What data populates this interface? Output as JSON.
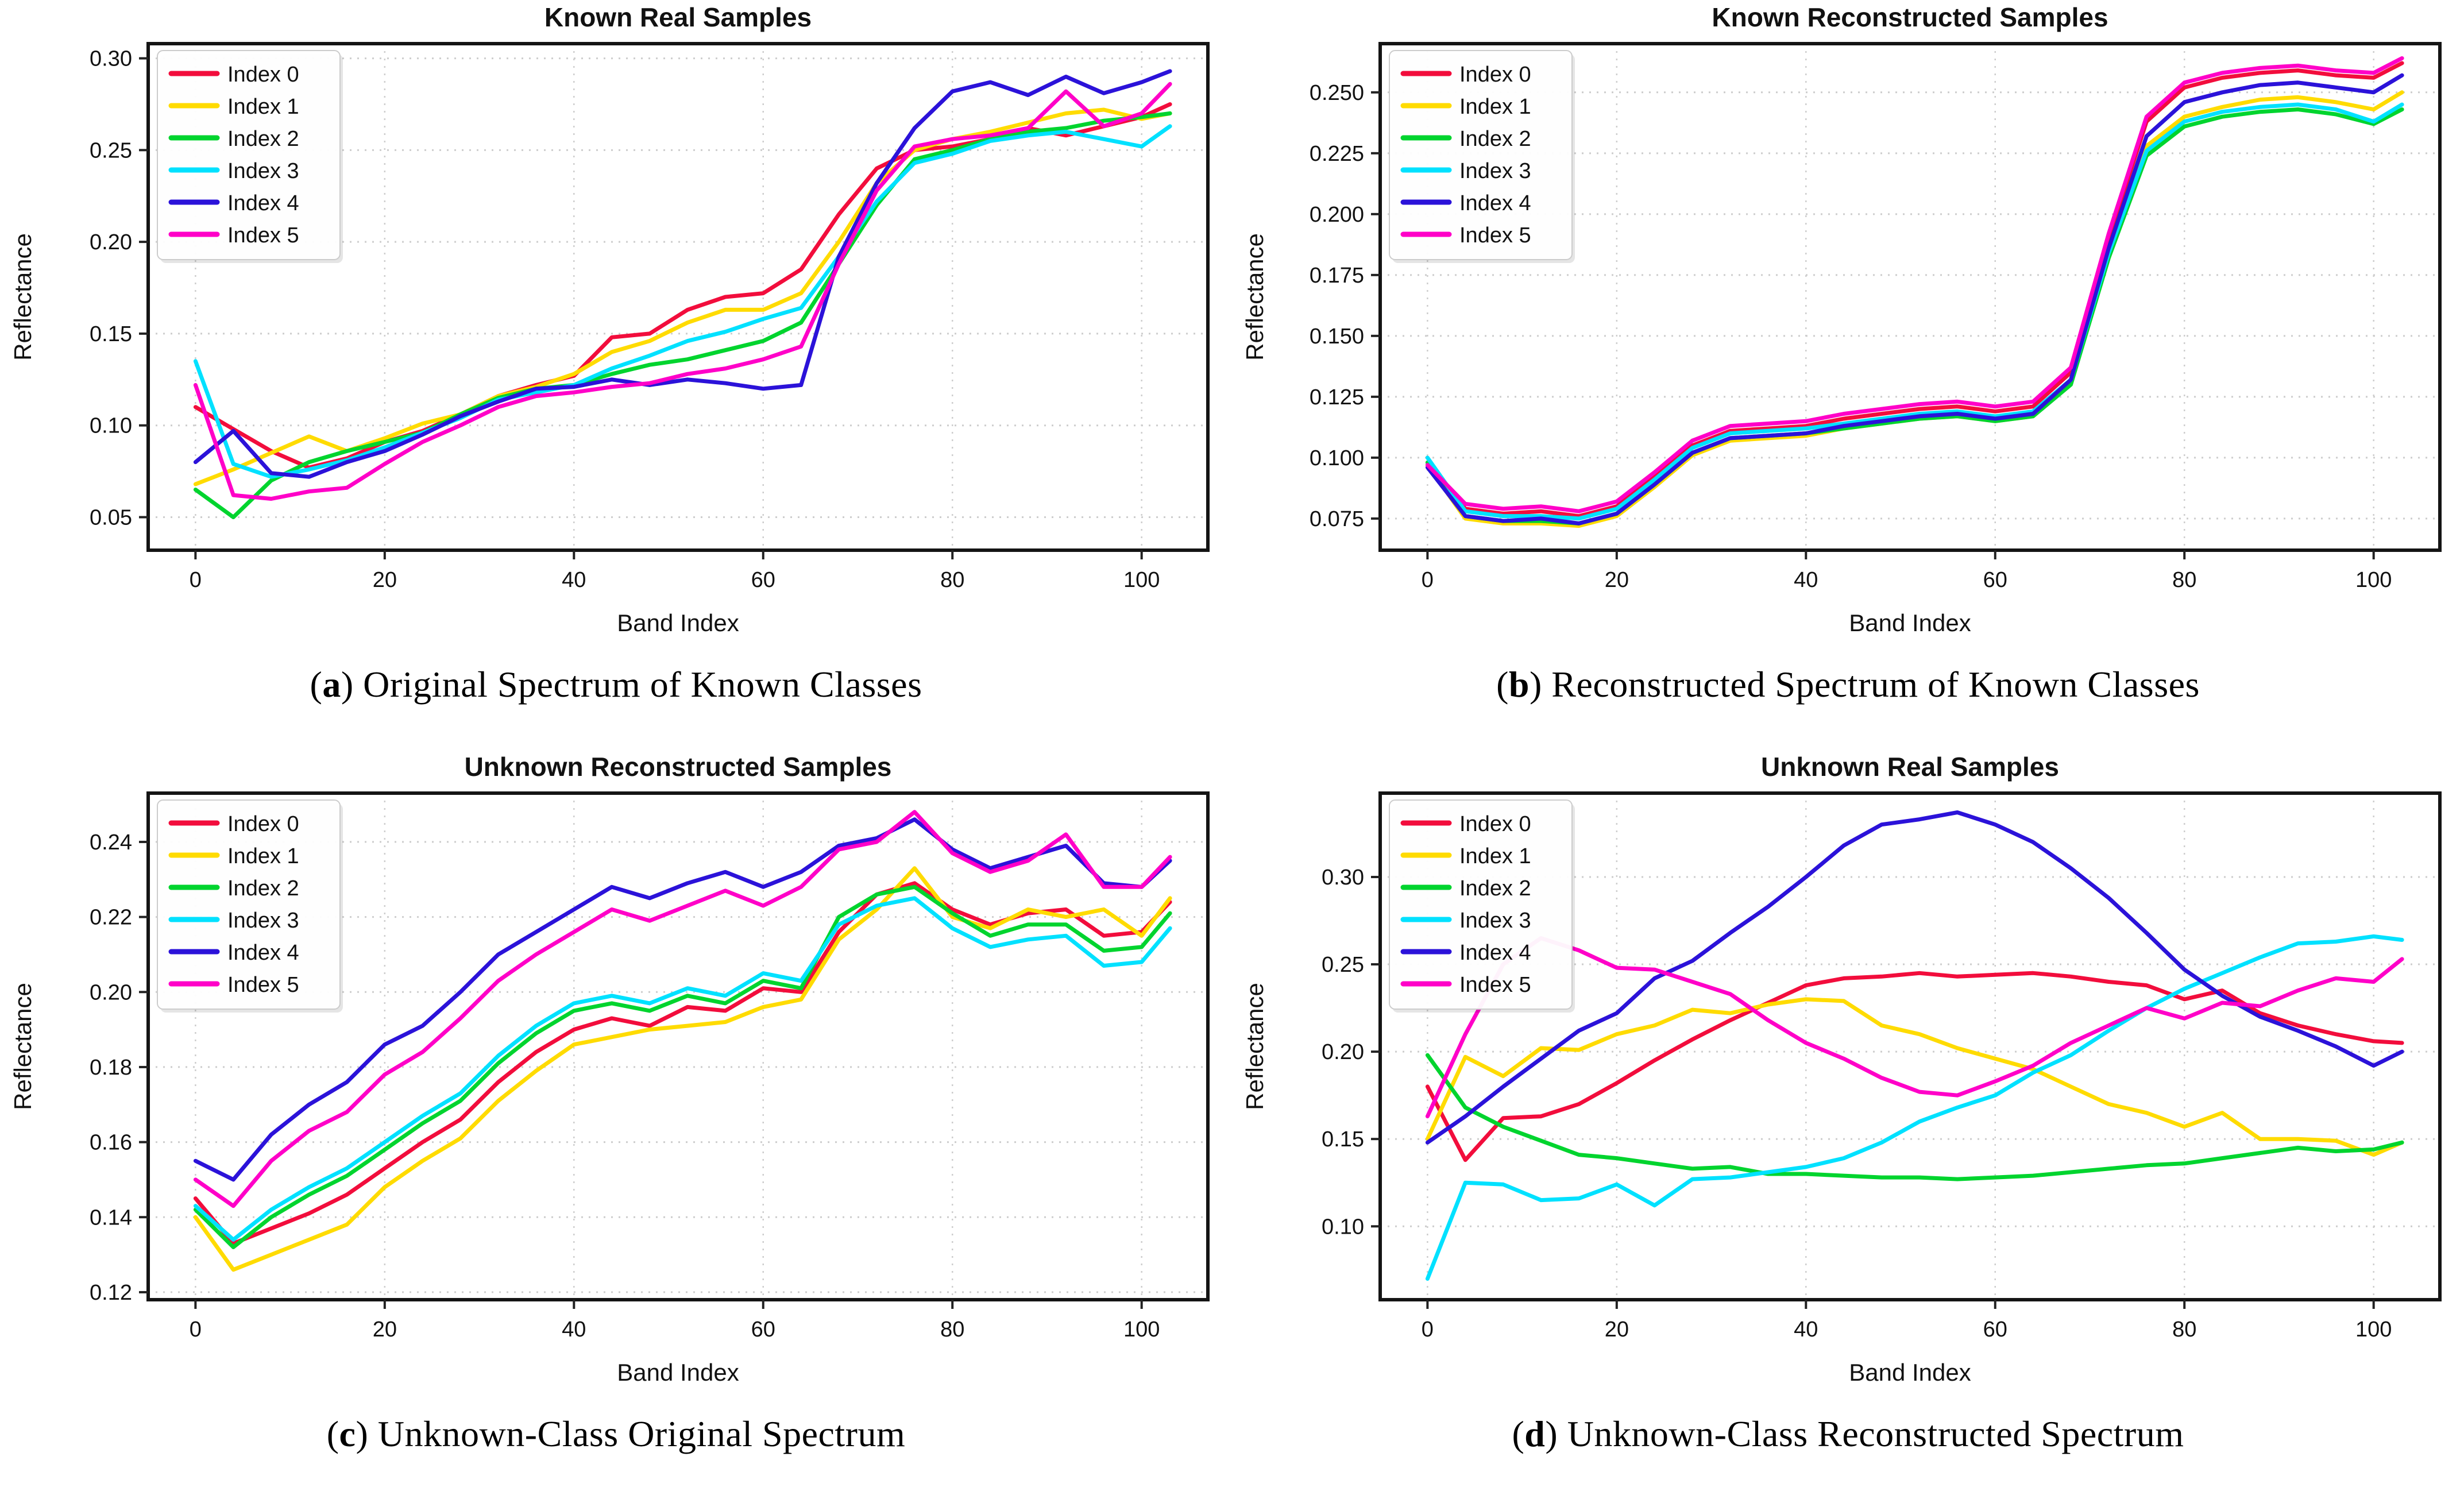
{
  "page": {
    "background": "#ffffff"
  },
  "caption_syntax": {
    "open": "(",
    "close": ") "
  },
  "figures": [
    {
      "id": "a",
      "caption_letter": "a",
      "caption_text": "Original Spectrum of Known Classes"
    },
    {
      "id": "b",
      "caption_letter": "b",
      "caption_text": "Reconstructed Spectrum of Known Classes"
    },
    {
      "id": "c",
      "caption_letter": "c",
      "caption_text": "Unknown-Class Original Spectrum"
    },
    {
      "id": "d",
      "caption_letter": "d",
      "caption_text": "Unknown-Class Reconstructed Spectrum"
    }
  ],
  "style": {
    "grid_color": "#cdcdcd",
    "spine_color": "#141414",
    "tick_color": "#222222",
    "text_color": "#111111",
    "legend_border": "#cccccc",
    "legend_bg": "#ffffff"
  },
  "chart_data": [
    {
      "id": "a",
      "type": "line",
      "title": "Known Real Samples",
      "xlabel": "Band Index",
      "ylabel": "Reflectance",
      "legend_position": "top-left",
      "grid": true,
      "xlim": [
        -5,
        107
      ],
      "ylim": [
        0.032,
        0.308
      ],
      "xticks": [
        0,
        20,
        40,
        60,
        80,
        100
      ],
      "ytick_values": [
        0.05,
        0.1,
        0.15,
        0.2,
        0.25,
        0.3
      ],
      "ytick_labels": [
        "0.05",
        "0.10",
        "0.15",
        "0.20",
        "0.25",
        "0.30"
      ],
      "x": [
        0,
        4,
        8,
        12,
        16,
        20,
        24,
        28,
        32,
        36,
        40,
        44,
        48,
        52,
        56,
        60,
        64,
        68,
        72,
        76,
        80,
        84,
        88,
        92,
        96,
        100,
        103
      ],
      "series": [
        {
          "name": "Index 0",
          "color": "#F20D3C",
          "values": [
            0.11,
            0.098,
            0.086,
            0.077,
            0.082,
            0.091,
            0.097,
            0.106,
            0.116,
            0.122,
            0.127,
            0.148,
            0.15,
            0.163,
            0.17,
            0.172,
            0.185,
            0.215,
            0.24,
            0.25,
            0.252,
            0.256,
            0.262,
            0.258,
            0.263,
            0.268,
            0.275
          ]
        },
        {
          "name": "Index 1",
          "color": "#FFDB00",
          "values": [
            0.068,
            0.076,
            0.085,
            0.094,
            0.086,
            0.093,
            0.101,
            0.106,
            0.116,
            0.121,
            0.128,
            0.14,
            0.146,
            0.156,
            0.163,
            0.163,
            0.172,
            0.2,
            0.232,
            0.25,
            0.256,
            0.26,
            0.265,
            0.27,
            0.272,
            0.267,
            0.27
          ]
        },
        {
          "name": "Index 2",
          "color": "#00D42E",
          "values": [
            0.065,
            0.05,
            0.07,
            0.08,
            0.086,
            0.091,
            0.096,
            0.106,
            0.115,
            0.12,
            0.122,
            0.128,
            0.133,
            0.136,
            0.141,
            0.146,
            0.156,
            0.188,
            0.22,
            0.245,
            0.25,
            0.256,
            0.26,
            0.262,
            0.266,
            0.268,
            0.27
          ]
        },
        {
          "name": "Index 3",
          "color": "#00E1FF",
          "values": [
            0.135,
            0.079,
            0.072,
            0.076,
            0.081,
            0.088,
            0.096,
            0.104,
            0.114,
            0.118,
            0.122,
            0.131,
            0.138,
            0.146,
            0.151,
            0.158,
            0.164,
            0.192,
            0.222,
            0.243,
            0.248,
            0.255,
            0.258,
            0.26,
            0.256,
            0.252,
            0.263
          ]
        },
        {
          "name": "Index 4",
          "color": "#2B12D9",
          "values": [
            0.08,
            0.097,
            0.074,
            0.072,
            0.08,
            0.086,
            0.095,
            0.105,
            0.113,
            0.12,
            0.121,
            0.125,
            0.122,
            0.125,
            0.123,
            0.12,
            0.122,
            0.192,
            0.232,
            0.262,
            0.282,
            0.287,
            0.28,
            0.29,
            0.281,
            0.287,
            0.293
          ]
        },
        {
          "name": "Index 5",
          "color": "#FF00C8",
          "values": [
            0.122,
            0.062,
            0.06,
            0.064,
            0.066,
            0.079,
            0.091,
            0.1,
            0.11,
            0.116,
            0.118,
            0.121,
            0.123,
            0.128,
            0.131,
            0.136,
            0.143,
            0.188,
            0.228,
            0.252,
            0.256,
            0.258,
            0.262,
            0.282,
            0.263,
            0.27,
            0.286
          ]
        }
      ]
    },
    {
      "id": "b",
      "type": "line",
      "title": "Known Reconstructed Samples",
      "xlabel": "Band Index",
      "ylabel": "Reflectance",
      "legend_position": "top-left",
      "grid": true,
      "xlim": [
        -5,
        107
      ],
      "ylim": [
        0.062,
        0.27
      ],
      "xticks": [
        0,
        20,
        40,
        60,
        80,
        100
      ],
      "ytick_values": [
        0.075,
        0.1,
        0.125,
        0.15,
        0.175,
        0.2,
        0.225,
        0.25
      ],
      "ytick_labels": [
        "0.075",
        "0.100",
        "0.125",
        "0.150",
        "0.175",
        "0.200",
        "0.225",
        "0.250"
      ],
      "x": [
        0,
        4,
        8,
        12,
        16,
        20,
        24,
        28,
        32,
        36,
        40,
        44,
        48,
        52,
        56,
        60,
        64,
        68,
        72,
        76,
        80,
        84,
        88,
        92,
        96,
        100,
        103
      ],
      "series": [
        {
          "name": "Index 0",
          "color": "#F20D3C",
          "values": [
            0.098,
            0.079,
            0.077,
            0.078,
            0.076,
            0.08,
            0.092,
            0.105,
            0.111,
            0.112,
            0.113,
            0.116,
            0.118,
            0.12,
            0.121,
            0.119,
            0.121,
            0.135,
            0.19,
            0.238,
            0.252,
            0.256,
            0.258,
            0.259,
            0.257,
            0.256,
            0.262
          ]
        },
        {
          "name": "Index 1",
          "color": "#FFDB00",
          "values": [
            0.097,
            0.075,
            0.073,
            0.073,
            0.072,
            0.076,
            0.088,
            0.101,
            0.107,
            0.108,
            0.109,
            0.112,
            0.114,
            0.116,
            0.117,
            0.115,
            0.117,
            0.131,
            0.184,
            0.228,
            0.24,
            0.244,
            0.247,
            0.248,
            0.246,
            0.243,
            0.25
          ]
        },
        {
          "name": "Index 2",
          "color": "#00D42E",
          "values": [
            0.098,
            0.076,
            0.074,
            0.074,
            0.073,
            0.077,
            0.089,
            0.102,
            0.108,
            0.109,
            0.11,
            0.112,
            0.114,
            0.116,
            0.117,
            0.115,
            0.117,
            0.13,
            0.182,
            0.224,
            0.236,
            0.24,
            0.242,
            0.243,
            0.241,
            0.237,
            0.243
          ]
        },
        {
          "name": "Index 3",
          "color": "#00E1FF",
          "values": [
            0.1,
            0.078,
            0.076,
            0.076,
            0.075,
            0.079,
            0.091,
            0.104,
            0.11,
            0.111,
            0.112,
            0.114,
            0.116,
            0.118,
            0.119,
            0.117,
            0.119,
            0.132,
            0.184,
            0.226,
            0.238,
            0.242,
            0.244,
            0.245,
            0.243,
            0.238,
            0.245
          ]
        },
        {
          "name": "Index 4",
          "color": "#2B12D9",
          "values": [
            0.096,
            0.076,
            0.074,
            0.075,
            0.073,
            0.077,
            0.089,
            0.102,
            0.108,
            0.109,
            0.11,
            0.113,
            0.115,
            0.117,
            0.118,
            0.116,
            0.118,
            0.132,
            0.186,
            0.232,
            0.246,
            0.25,
            0.253,
            0.254,
            0.252,
            0.25,
            0.257
          ]
        },
        {
          "name": "Index 5",
          "color": "#FF00C8",
          "values": [
            0.097,
            0.081,
            0.079,
            0.08,
            0.078,
            0.082,
            0.094,
            0.107,
            0.113,
            0.114,
            0.115,
            0.118,
            0.12,
            0.122,
            0.123,
            0.121,
            0.123,
            0.137,
            0.192,
            0.24,
            0.254,
            0.258,
            0.26,
            0.261,
            0.259,
            0.258,
            0.264
          ]
        }
      ]
    },
    {
      "id": "c",
      "type": "line",
      "title": "Unknown Reconstructed Samples",
      "xlabel": "Band Index",
      "ylabel": "Reflectance",
      "legend_position": "top-left",
      "grid": true,
      "xlim": [
        -5,
        107
      ],
      "ylim": [
        0.118,
        0.253
      ],
      "xticks": [
        0,
        20,
        40,
        60,
        80,
        100
      ],
      "ytick_values": [
        0.12,
        0.14,
        0.16,
        0.18,
        0.2,
        0.22,
        0.24
      ],
      "ytick_labels": [
        "0.12",
        "0.14",
        "0.16",
        "0.18",
        "0.20",
        "0.22",
        "0.24"
      ],
      "x": [
        0,
        4,
        8,
        12,
        16,
        20,
        24,
        28,
        32,
        36,
        40,
        44,
        48,
        52,
        56,
        60,
        64,
        68,
        72,
        76,
        80,
        84,
        88,
        92,
        96,
        100,
        103
      ],
      "series": [
        {
          "name": "Index 0",
          "color": "#F20D3C",
          "values": [
            0.145,
            0.133,
            0.137,
            0.141,
            0.146,
            0.153,
            0.16,
            0.166,
            0.176,
            0.184,
            0.19,
            0.193,
            0.191,
            0.196,
            0.195,
            0.201,
            0.2,
            0.216,
            0.226,
            0.229,
            0.222,
            0.218,
            0.221,
            0.222,
            0.215,
            0.216,
            0.224
          ]
        },
        {
          "name": "Index 1",
          "color": "#FFDB00",
          "values": [
            0.14,
            0.126,
            0.13,
            0.134,
            0.138,
            0.148,
            0.155,
            0.161,
            0.171,
            0.179,
            0.186,
            0.188,
            0.19,
            0.191,
            0.192,
            0.196,
            0.198,
            0.214,
            0.222,
            0.233,
            0.22,
            0.217,
            0.222,
            0.22,
            0.222,
            0.215,
            0.225
          ]
        },
        {
          "name": "Index 2",
          "color": "#00D42E",
          "values": [
            0.142,
            0.132,
            0.14,
            0.146,
            0.151,
            0.158,
            0.165,
            0.171,
            0.181,
            0.189,
            0.195,
            0.197,
            0.195,
            0.199,
            0.197,
            0.203,
            0.201,
            0.22,
            0.226,
            0.228,
            0.221,
            0.215,
            0.218,
            0.218,
            0.211,
            0.212,
            0.221
          ]
        },
        {
          "name": "Index 3",
          "color": "#00E1FF",
          "values": [
            0.143,
            0.134,
            0.142,
            0.148,
            0.153,
            0.16,
            0.167,
            0.173,
            0.183,
            0.191,
            0.197,
            0.199,
            0.197,
            0.201,
            0.199,
            0.205,
            0.203,
            0.218,
            0.223,
            0.225,
            0.217,
            0.212,
            0.214,
            0.215,
            0.207,
            0.208,
            0.217
          ]
        },
        {
          "name": "Index 4",
          "color": "#2B12D9",
          "values": [
            0.155,
            0.15,
            0.162,
            0.17,
            0.176,
            0.186,
            0.191,
            0.2,
            0.21,
            0.216,
            0.222,
            0.228,
            0.225,
            0.229,
            0.232,
            0.228,
            0.232,
            0.239,
            0.241,
            0.246,
            0.238,
            0.233,
            0.236,
            0.239,
            0.229,
            0.228,
            0.235
          ]
        },
        {
          "name": "Index 5",
          "color": "#FF00C8",
          "values": [
            0.15,
            0.143,
            0.155,
            0.163,
            0.168,
            0.178,
            0.184,
            0.193,
            0.203,
            0.21,
            0.216,
            0.222,
            0.219,
            0.223,
            0.227,
            0.223,
            0.228,
            0.238,
            0.24,
            0.248,
            0.237,
            0.232,
            0.235,
            0.242,
            0.228,
            0.228,
            0.236
          ]
        }
      ]
    },
    {
      "id": "d",
      "type": "line",
      "title": "Unknown Real Samples",
      "xlabel": "Band Index",
      "ylabel": "Reflectance",
      "legend_position": "top-left",
      "grid": true,
      "xlim": [
        -5,
        107
      ],
      "ylim": [
        0.058,
        0.348
      ],
      "xticks": [
        0,
        20,
        40,
        60,
        80,
        100
      ],
      "ytick_values": [
        0.1,
        0.15,
        0.2,
        0.25,
        0.3
      ],
      "ytick_labels": [
        "0.10",
        "0.15",
        "0.20",
        "0.25",
        "0.30"
      ],
      "x": [
        0,
        4,
        8,
        12,
        16,
        20,
        24,
        28,
        32,
        36,
        40,
        44,
        48,
        52,
        56,
        60,
        64,
        68,
        72,
        76,
        80,
        84,
        88,
        92,
        96,
        100,
        103
      ],
      "series": [
        {
          "name": "Index 0",
          "color": "#F20D3C",
          "values": [
            0.18,
            0.138,
            0.162,
            0.163,
            0.17,
            0.182,
            0.195,
            0.207,
            0.218,
            0.228,
            0.238,
            0.242,
            0.243,
            0.245,
            0.243,
            0.244,
            0.245,
            0.243,
            0.24,
            0.238,
            0.23,
            0.235,
            0.222,
            0.215,
            0.21,
            0.206,
            0.205
          ]
        },
        {
          "name": "Index 1",
          "color": "#FFDB00",
          "values": [
            0.15,
            0.197,
            0.186,
            0.202,
            0.201,
            0.21,
            0.215,
            0.224,
            0.222,
            0.227,
            0.23,
            0.229,
            0.215,
            0.21,
            0.202,
            0.196,
            0.19,
            0.18,
            0.17,
            0.165,
            0.157,
            0.165,
            0.15,
            0.15,
            0.149,
            0.141,
            0.148
          ]
        },
        {
          "name": "Index 2",
          "color": "#00D42E",
          "values": [
            0.198,
            0.168,
            0.157,
            0.149,
            0.141,
            0.139,
            0.136,
            0.133,
            0.134,
            0.13,
            0.13,
            0.129,
            0.128,
            0.128,
            0.127,
            0.128,
            0.129,
            0.131,
            0.133,
            0.135,
            0.136,
            0.139,
            0.142,
            0.145,
            0.143,
            0.144,
            0.148
          ]
        },
        {
          "name": "Index 3",
          "color": "#00E1FF",
          "values": [
            0.07,
            0.125,
            0.124,
            0.115,
            0.116,
            0.124,
            0.112,
            0.127,
            0.128,
            0.131,
            0.134,
            0.139,
            0.148,
            0.16,
            0.168,
            0.175,
            0.188,
            0.198,
            0.212,
            0.225,
            0.236,
            0.245,
            0.254,
            0.262,
            0.263,
            0.266,
            0.264
          ]
        },
        {
          "name": "Index 4",
          "color": "#2B12D9",
          "values": [
            0.148,
            0.163,
            0.18,
            0.196,
            0.212,
            0.222,
            0.242,
            0.252,
            0.268,
            0.283,
            0.3,
            0.318,
            0.33,
            0.333,
            0.337,
            0.33,
            0.32,
            0.305,
            0.288,
            0.268,
            0.247,
            0.232,
            0.22,
            0.212,
            0.203,
            0.192,
            0.2
          ]
        },
        {
          "name": "Index 5",
          "color": "#FF00C8",
          "values": [
            0.163,
            0.21,
            0.25,
            0.265,
            0.258,
            0.248,
            0.247,
            0.24,
            0.233,
            0.218,
            0.205,
            0.196,
            0.185,
            0.177,
            0.175,
            0.183,
            0.192,
            0.205,
            0.215,
            0.225,
            0.219,
            0.228,
            0.226,
            0.235,
            0.242,
            0.24,
            0.253
          ]
        }
      ]
    }
  ]
}
